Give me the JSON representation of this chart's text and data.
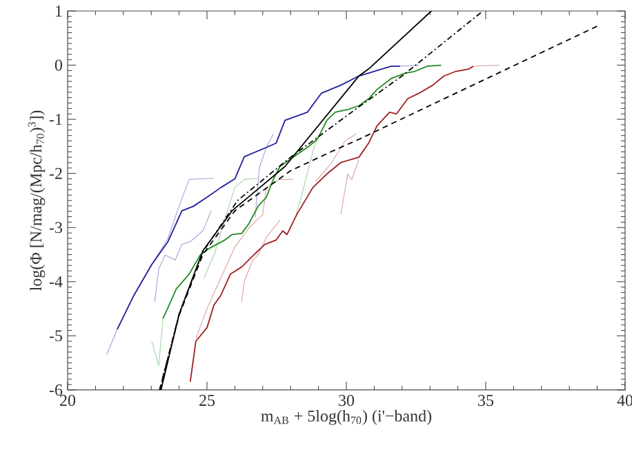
{
  "chart_data": {
    "type": "line",
    "xlabel": "m$_{AB}$ + 5log(h$_{70}$) (i'−band)",
    "ylabel": "log(Φ [N/mag/(Mpc/h$_{70}$)$^{3}$])",
    "xlim": [
      20,
      40
    ],
    "ylim": [
      -6,
      1
    ],
    "xticks": [
      20,
      25,
      30,
      35,
      40
    ],
    "yticks": [
      -6,
      -5,
      -4,
      -3,
      -2,
      -1,
      0,
      1
    ],
    "series": [
      {
        "color": "#a8a8dd",
        "line_style": "solid",
        "x": [
          21.4,
          21.78,
          22.38,
          23.02,
          23.6,
          24.0,
          24.36,
          25.25,
          null,
          23.12,
          23.27,
          23.5,
          23.86,
          24.1,
          24.4,
          24.85,
          25.15,
          null,
          26.73,
          26.88,
          27.13,
          27.38,
          null,
          31.93,
          32.6
        ],
        "values": [
          -5.35,
          -4.88,
          -4.25,
          -3.68,
          -3.2,
          -2.6,
          -2.11,
          -2.09,
          null,
          -4.38,
          -3.76,
          -3.51,
          -3.6,
          -3.31,
          -3.26,
          -3.06,
          -2.69,
          null,
          -2.81,
          -1.89,
          -1.52,
          -1.27,
          null,
          -0.02,
          0
        ]
      },
      {
        "color": "#a8d8a8",
        "line_style": "solid",
        "x": [
          23.02,
          23.27,
          23.42,
          null,
          24.9,
          25.1,
          25.25,
          25.4,
          25.6,
          26.0,
          26.34,
          26.83,
          null,
          28.2,
          28.47,
          28.8,
          28.96
        ],
        "values": [
          -5.1,
          -5.55,
          -4.68,
          null,
          -3.93,
          -3.68,
          -3.51,
          -3.26,
          -2.9,
          -2.26,
          -2.11,
          -2.09,
          null,
          -2.76,
          -2.26,
          -1.6,
          -1.3
        ]
      },
      {
        "color": "#e0a8a8",
        "line_style": "solid",
        "x": [
          24.6,
          25.0,
          25.5,
          26.0,
          26.5,
          27.0,
          27.13,
          27.62,
          28.1,
          null,
          26.24,
          26.34,
          26.63,
          26.83,
          27.13,
          27.62,
          null,
          28.9,
          29.45,
          29.95,
          30.35,
          null,
          29.8,
          30.05,
          30.2,
          30.45,
          null,
          34.55,
          35.5
        ],
        "values": [
          -5.05,
          -4.5,
          -3.93,
          -3.36,
          -3.01,
          -2.76,
          -2.26,
          -2.11,
          -2.11,
          null,
          -4.38,
          -4.0,
          -3.61,
          -3.51,
          -3.18,
          -2.86,
          null,
          -2.15,
          -1.82,
          -1.4,
          -1.27,
          null,
          -2.76,
          -2.01,
          -2.11,
          -1.74,
          null,
          -0.02,
          0
        ]
      },
      {
        "color": "#1f1f9a",
        "line_style": "solid",
        "x": [
          21.78,
          22.38,
          23.02,
          23.6,
          24.1,
          24.5,
          25.0,
          25.5,
          26.0,
          26.34,
          27.13,
          27.48,
          27.8,
          28.6,
          29.1,
          29.8,
          30.45,
          31.6,
          31.93
        ],
        "values": [
          -4.88,
          -4.25,
          -3.68,
          -3.26,
          -2.69,
          -2.61,
          -2.44,
          -2.26,
          -2.1,
          -1.69,
          -1.52,
          -1.44,
          -1.02,
          -0.87,
          -0.52,
          -0.37,
          -0.2,
          -0.02,
          -0.02
        ]
      },
      {
        "color": "#1f8a1f",
        "line_style": "solid",
        "x": [
          23.42,
          23.6,
          23.9,
          24.36,
          24.75,
          25.1,
          25.35,
          25.64,
          25.9,
          26.24,
          26.49,
          26.83,
          27.13,
          27.38,
          27.62,
          28.12,
          28.6,
          28.96,
          29.3,
          29.6,
          30.05,
          30.45,
          30.8,
          31.1,
          31.6,
          32.1,
          32.43,
          32.9,
          33.4
        ],
        "values": [
          -4.68,
          -4.48,
          -4.13,
          -3.86,
          -3.51,
          -3.38,
          -3.31,
          -3.23,
          -3.13,
          -3.11,
          -2.94,
          -2.61,
          -2.44,
          -2.11,
          -1.87,
          -1.69,
          -1.52,
          -1.37,
          -1.02,
          -0.87,
          -0.82,
          -0.75,
          -0.62,
          -0.45,
          -0.25,
          -0.15,
          -0.12,
          -0.02,
          0
        ]
      },
      {
        "color": "#a01f1f",
        "line_style": "solid",
        "x": [
          24.4,
          24.6,
          25.0,
          25.25,
          25.5,
          25.84,
          26.24,
          26.73,
          27.08,
          27.48,
          27.72,
          27.87,
          28.22,
          28.8,
          29.3,
          29.8,
          30.45,
          30.8,
          31.1,
          31.55,
          31.8,
          32.2,
          32.6,
          33.1,
          33.5,
          33.9,
          34.4,
          34.55
        ],
        "values": [
          -5.85,
          -5.1,
          -4.85,
          -4.43,
          -4.25,
          -3.86,
          -3.73,
          -3.48,
          -3.31,
          -3.23,
          -3.06,
          -3.13,
          -2.76,
          -2.26,
          -2.01,
          -1.8,
          -1.7,
          -1.44,
          -1.12,
          -0.87,
          -0.9,
          -0.62,
          -0.52,
          -0.37,
          -0.2,
          -0.12,
          -0.07,
          -0.02
        ]
      },
      {
        "color": "#000000",
        "line_style": "solid",
        "x": [
          23.35,
          24.0,
          24.85,
          25.9,
          27.8,
          30.45,
          30.8,
          33.05
        ],
        "values": [
          -6,
          -4.6,
          -3.43,
          -2.69,
          -1.87,
          -0.2,
          -0.07,
          1
        ]
      },
      {
        "color": "#000000",
        "line_style": "dashdotted",
        "x": [
          23.3,
          24.0,
          24.85,
          26.1,
          28.0,
          30.45,
          32.0,
          34.9
        ],
        "values": [
          -6,
          -4.6,
          -3.45,
          -2.5,
          -1.7,
          -0.77,
          -0.2,
          1
        ]
      },
      {
        "color": "#000000",
        "line_style": "dashed",
        "x": [
          23.3,
          24.0,
          24.85,
          26.0,
          28.0,
          29.45,
          30.45,
          34.0,
          39.0
        ],
        "values": [
          -6,
          -4.62,
          -3.5,
          -2.69,
          -1.95,
          -1.6,
          -1.37,
          -0.5,
          0.72
        ]
      }
    ]
  }
}
